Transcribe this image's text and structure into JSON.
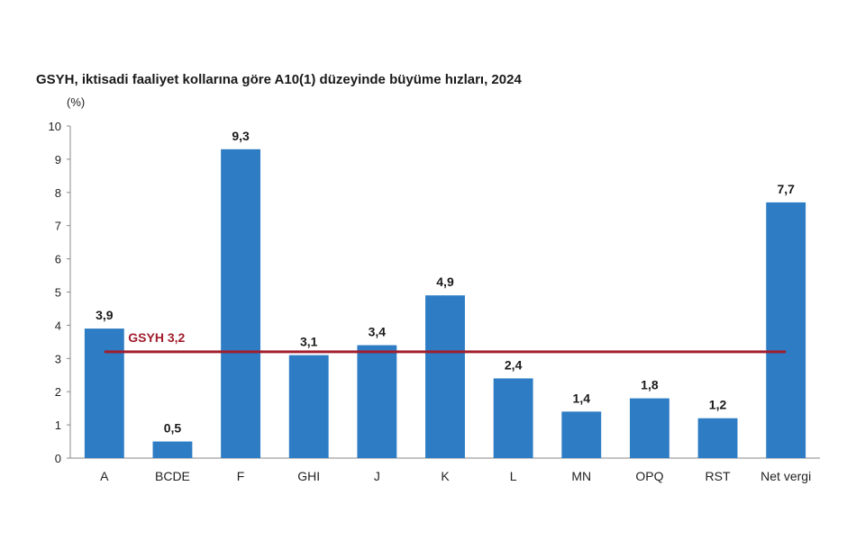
{
  "chart_data": {
    "type": "bar",
    "title": "GSYH, iktisadi faaliyet kollarına göre A10(1) düzeyinde büyüme hızları, 2024",
    "unit_label": "(%)",
    "categories": [
      "A",
      "BCDE",
      "F",
      "GHI",
      "J",
      "K",
      "L",
      "MN",
      "OPQ",
      "RST",
      "Net vergi"
    ],
    "values": [
      3.9,
      0.5,
      9.3,
      3.1,
      3.4,
      4.9,
      2.4,
      1.4,
      1.8,
      1.2,
      7.7
    ],
    "data_labels": [
      "3,9",
      "0,5",
      "9,3",
      "3,1",
      "3,4",
      "4,9",
      "2,4",
      "1,4",
      "1,8",
      "1,2",
      "7,7"
    ],
    "ylim": [
      0,
      10
    ],
    "yticks": [
      0,
      1,
      2,
      3,
      4,
      5,
      6,
      7,
      8,
      9,
      10
    ],
    "grid": false,
    "reference_line": {
      "label": "GSYH 3,2",
      "value": 3.2
    },
    "colors": {
      "bar": "#2E7DC4",
      "reference_line": "#A01E2E",
      "axis": "#888888"
    }
  }
}
